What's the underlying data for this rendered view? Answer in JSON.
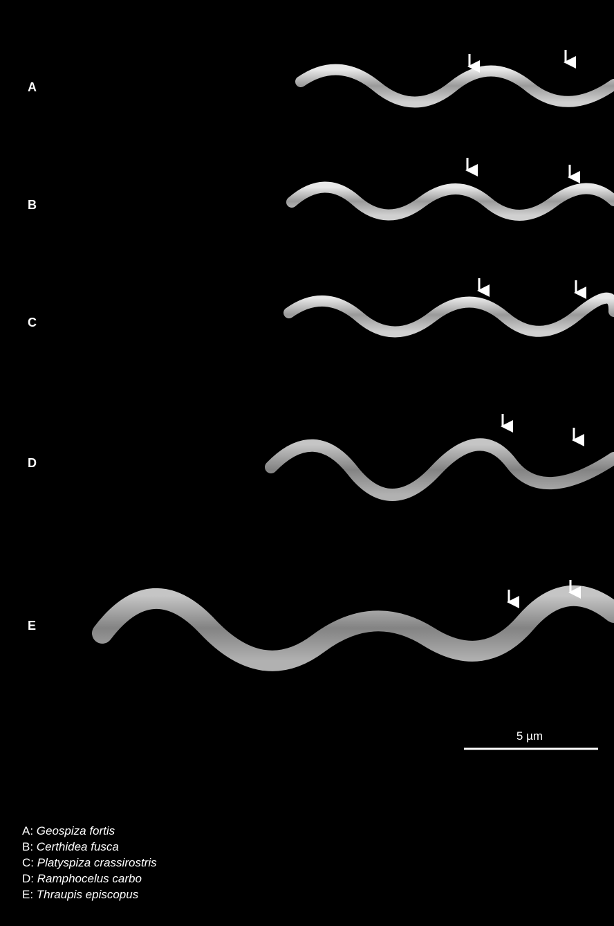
{
  "panels": [
    {
      "label": "A"
    },
    {
      "label": "B"
    },
    {
      "label": "C"
    },
    {
      "label": "D"
    },
    {
      "label": "E"
    }
  ],
  "scale_bar": {
    "label": "5 µm"
  },
  "legend": [
    {
      "key": "A:",
      "species": "Geospiza fortis"
    },
    {
      "key": "B:",
      "species": "Certhidea fusca"
    },
    {
      "key": "C:",
      "species": "Platyspiza crassirostris"
    },
    {
      "key": "D:",
      "species": "Ramphocelus carbo"
    },
    {
      "key": "E:",
      "species": "Thraupis episcopus"
    }
  ]
}
